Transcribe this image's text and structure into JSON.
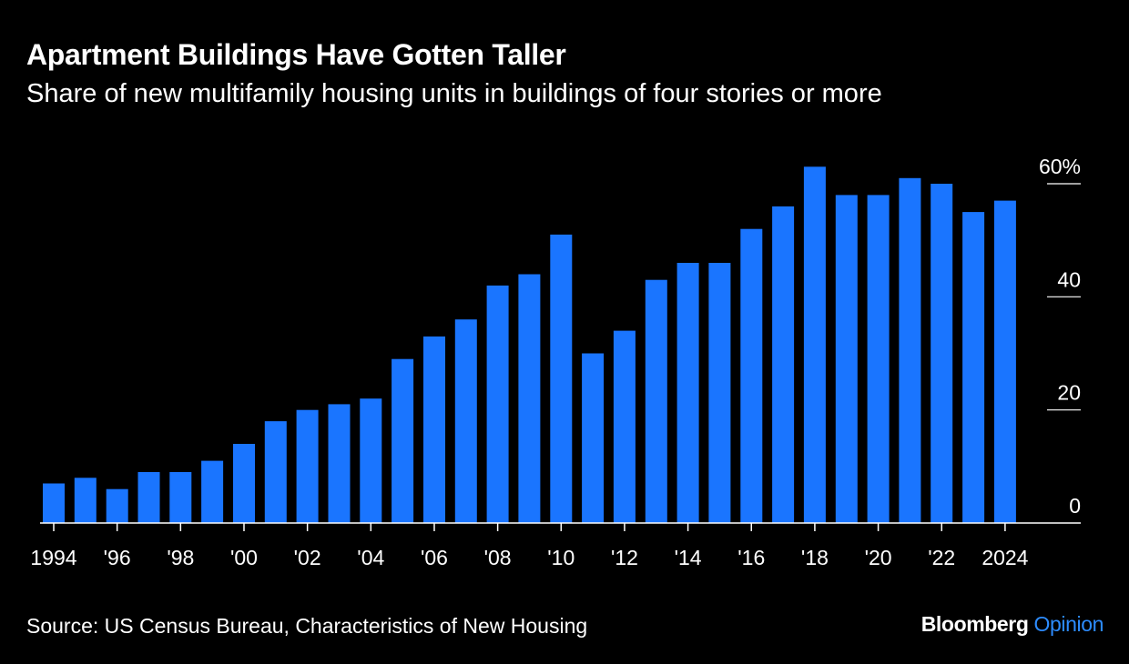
{
  "header": {
    "title": "Apartment Buildings Have Gotten Taller",
    "subtitle": "Share of new multifamily housing units in buildings of four stories or more"
  },
  "footer": {
    "source": "Source: US Census Bureau, Characteristics of New Housing",
    "logo_brand": "Bloomberg",
    "logo_product": "Opinion"
  },
  "colors": {
    "background": "#000000",
    "bar": "#1a75ff",
    "text": "#ffffff",
    "logo_accent": "#2d8cff"
  },
  "chart_data": {
    "type": "bar",
    "title": "Apartment Buildings Have Gotten Taller",
    "subtitle": "Share of new multifamily housing units in buildings of four stories or more",
    "x": [
      1994,
      1995,
      1996,
      1997,
      1998,
      1999,
      2000,
      2001,
      2002,
      2003,
      2004,
      2005,
      2006,
      2007,
      2008,
      2009,
      2010,
      2011,
      2012,
      2013,
      2014,
      2015,
      2016,
      2017,
      2018,
      2019,
      2020,
      2021,
      2022,
      2023,
      2024
    ],
    "values": [
      7,
      8,
      6,
      9,
      9,
      11,
      14,
      18,
      20,
      21,
      22,
      29,
      33,
      36,
      42,
      44,
      51,
      30,
      34,
      43,
      46,
      46,
      52,
      56,
      63,
      58,
      58,
      61,
      60,
      55,
      57
    ],
    "x_tick_labels": [
      "1994",
      "'96",
      "'98",
      "'00",
      "'02",
      "'04",
      "'06",
      "'08",
      "'10",
      "'12",
      "'14",
      "'16",
      "'18",
      "'20",
      "'22",
      "2024"
    ],
    "x_tick_years": [
      1994,
      1996,
      1998,
      2000,
      2002,
      2004,
      2006,
      2008,
      2010,
      2012,
      2014,
      2016,
      2018,
      2020,
      2022,
      2024
    ],
    "y_ticks": [
      0,
      20,
      40,
      60
    ],
    "y_tick_labels": [
      "0",
      "20",
      "40",
      "60%"
    ],
    "ylim": [
      0,
      60
    ],
    "yaxis_position": "right",
    "grid": false,
    "legend": "none",
    "xlabel": "",
    "ylabel": ""
  }
}
